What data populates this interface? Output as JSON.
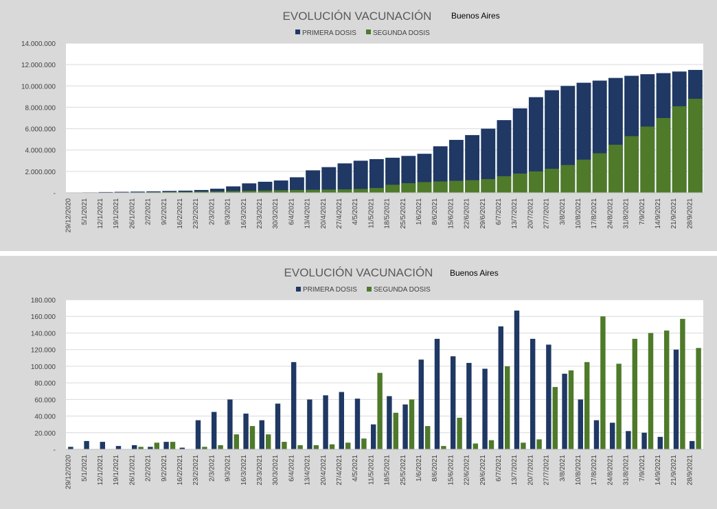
{
  "colors": {
    "first": "#1f3864",
    "second": "#4e7a2a",
    "plot_bg": "#ffffff",
    "panel_bg": "#d9d9d9",
    "grid": "#d9d9d9"
  },
  "chart_data": [
    {
      "type": "bar",
      "subtype": "cumulative",
      "title": "EVOLUCIÓN VACUNACIÓN",
      "subtitle": "Buenos Aires",
      "legend": [
        "PRIMERA DOSIS",
        "SEGUNDA DOSIS"
      ],
      "legend_position": "top-center",
      "ylim": [
        0,
        14000000
      ],
      "yticks": [
        "-",
        "2.000.000",
        "4.000.000",
        "6.000.000",
        "8.000.000",
        "10.000.000",
        "12.000.000",
        "14.000.000"
      ],
      "x_labels": [
        "29/12/2020",
        "5/1/2021",
        "12/1/2021",
        "19/1/2021",
        "26/1/2021",
        "2/2/2021",
        "9/2/2021",
        "16/2/2021",
        "23/2/2021",
        "2/3/2021",
        "9/3/2021",
        "16/3/2021",
        "23/3/2021",
        "30/3/2021",
        "6/4/2021",
        "13/4/2021",
        "20/4/2021",
        "27/4/2021",
        "4/5/2021",
        "11/5/2021",
        "18/5/2021",
        "25/5/2021",
        "1/6/2021",
        "8/6/2021",
        "15/6/2021",
        "22/6/2021",
        "29/6/2021",
        "6/7/2021",
        "13/7/2021",
        "20/7/2021",
        "27/7/2021",
        "3/8/2021",
        "10/8/2021",
        "17/8/2021",
        "24/8/2021",
        "31/8/2021",
        "7/9/2021",
        "14/9/2021",
        "21/9/2021",
        "28/9/2021"
      ],
      "series": [
        {
          "name": "PRIMERA DOSIS",
          "values": [
            20000,
            40000,
            70000,
            90000,
            110000,
            130000,
            170000,
            200000,
            260000,
            380000,
            600000,
            880000,
            1030000,
            1150000,
            1450000,
            2100000,
            2400000,
            2750000,
            3000000,
            3150000,
            3280000,
            3450000,
            3650000,
            4350000,
            4950000,
            5400000,
            6000000,
            6800000,
            7900000,
            8950000,
            9600000,
            10000000,
            10300000,
            10500000,
            10750000,
            10950000,
            11100000,
            11200000,
            11350000,
            11500000
          ]
        },
        {
          "name": "SEGUNDA DOSIS",
          "values": [
            0,
            5000,
            10000,
            20000,
            30000,
            50000,
            70000,
            90000,
            110000,
            130000,
            160000,
            190000,
            210000,
            240000,
            260000,
            280000,
            300000,
            320000,
            360000,
            450000,
            750000,
            900000,
            1000000,
            1060000,
            1120000,
            1180000,
            1280000,
            1550000,
            1800000,
            2000000,
            2250000,
            2600000,
            3100000,
            3700000,
            4500000,
            5300000,
            6200000,
            7000000,
            8100000,
            8800000
          ]
        }
      ]
    },
    {
      "type": "bar",
      "subtype": "daily",
      "title": "EVOLUCIÓN VACUNACIÓN",
      "subtitle": "Buenos Aires",
      "legend": [
        "PRIMERA DOSIS",
        "SEGUNDA DOSIS"
      ],
      "legend_position": "top-center",
      "ylim": [
        0,
        180000
      ],
      "yticks": [
        "-",
        "20.000",
        "40.000",
        "60.000",
        "80.000",
        "100.000",
        "120.000",
        "140.000",
        "160.000",
        "180.000"
      ],
      "x_labels": [
        "29/12/2020",
        "5/1/2021",
        "12/1/2021",
        "19/1/2021",
        "26/1/2021",
        "2/2/2021",
        "9/2/2021",
        "16/2/2021",
        "23/2/2021",
        "2/3/2021",
        "9/3/2021",
        "16/3/2021",
        "23/3/2021",
        "30/3/2021",
        "6/4/2021",
        "13/4/2021",
        "20/4/2021",
        "27/4/2021",
        "4/5/2021",
        "11/5/2021",
        "18/5/2021",
        "25/5/2021",
        "1/6/2021",
        "8/6/2021",
        "15/6/2021",
        "22/6/2021",
        "29/6/2021",
        "6/7/2021",
        "13/7/2021",
        "20/7/2021",
        "27/7/2021",
        "3/8/2021",
        "10/8/2021",
        "17/8/2021",
        "24/8/2021",
        "31/8/2021",
        "7/9/2021",
        "14/9/2021",
        "21/9/2021",
        "28/9/2021"
      ],
      "series": [
        {
          "name": "PRIMERA DOSIS",
          "values": [
            3000,
            10000,
            9000,
            4000,
            5000,
            3000,
            9000,
            2000,
            35000,
            45000,
            60000,
            43000,
            35000,
            55000,
            105000,
            60000,
            65000,
            69000,
            61000,
            30000,
            64000,
            54000,
            108000,
            133000,
            112000,
            104000,
            97000,
            148000,
            167000,
            133000,
            126000,
            91000,
            60000,
            35000,
            32000,
            22000,
            20000,
            15000,
            120000,
            10000
          ]
        },
        {
          "name": "SEGUNDA DOSIS",
          "values": [
            0,
            0,
            0,
            0,
            3000,
            8000,
            9000,
            0,
            3000,
            5000,
            18000,
            28000,
            18000,
            9000,
            5000,
            5000,
            6000,
            8000,
            13000,
            92000,
            44000,
            60000,
            28000,
            4000,
            38000,
            7000,
            11000,
            100000,
            8000,
            12000,
            75000,
            95000,
            105000,
            160000,
            103000,
            133000,
            140000,
            143000,
            157000,
            122000
          ]
        }
      ]
    }
  ]
}
